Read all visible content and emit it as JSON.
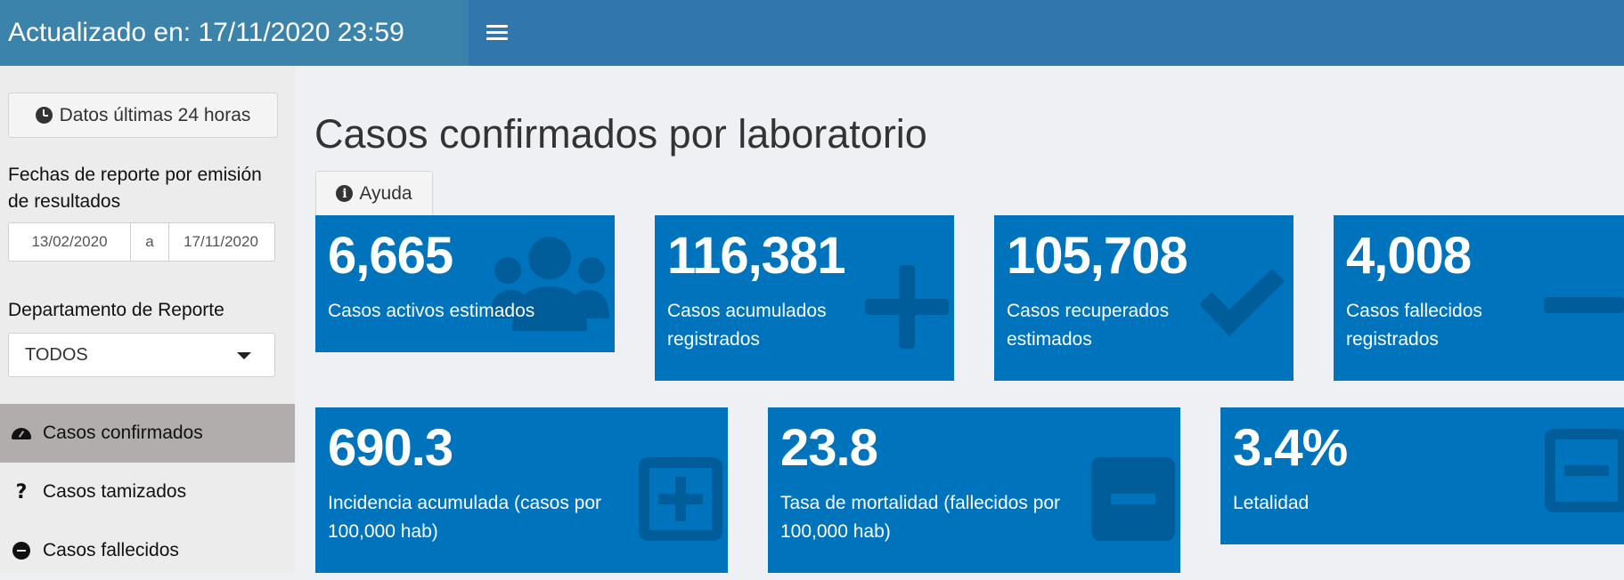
{
  "header": {
    "title": "Actualizado en: 17/11/2020 23:59",
    "menu_icon": "hamburger-icon"
  },
  "sidebar": {
    "last24_button": "Datos últimas 24 horas",
    "date_label": "Fechas de reporte por emisión de resultados",
    "date_start": "13/02/2020",
    "date_separator": "a",
    "date_end": "17/11/2020",
    "department_label": "Departamento de Reporte",
    "department_value": "TODOS",
    "nav": [
      {
        "label": "Casos confirmados",
        "icon": "gauge-icon",
        "active": true
      },
      {
        "label": "Casos tamizados",
        "icon": "question-icon",
        "active": false
      },
      {
        "label": "Casos fallecidos",
        "icon": "minus-circle-icon",
        "active": false
      }
    ]
  },
  "main": {
    "title": "Casos confirmados por laboratorio",
    "help_tab": "Ayuda",
    "boxes_row1": [
      {
        "value": "6,665",
        "label": "Casos activos estimados",
        "icon": "users-icon"
      },
      {
        "value": "116,381",
        "label": "Casos acumulados registrados",
        "icon": "plus-icon"
      },
      {
        "value": "105,708",
        "label": "Casos recuperados estimados",
        "icon": "check-icon"
      },
      {
        "value": "4,008",
        "label": "Casos fallecidos registrados",
        "icon": "minus-icon"
      }
    ],
    "boxes_row2": [
      {
        "value": "690.3",
        "label": "Incidencia acumulada (casos por 100,000 hab)",
        "icon": "plus-square-icon"
      },
      {
        "value": "23.8",
        "label": "Tasa de mortalidad (fallecidos por 100,000 hab)",
        "icon": "minus-square-icon"
      },
      {
        "value": "3.4%",
        "label": "Letalidad",
        "icon": "minus-square-icon"
      }
    ]
  },
  "colors": {
    "header": "#3177ad",
    "brand": "#3c83ab",
    "box": "#0073bd",
    "sidebar": "#ececec",
    "nav_active": "#b1adad"
  }
}
